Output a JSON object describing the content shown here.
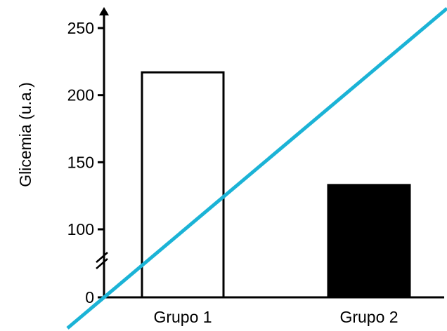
{
  "chart_data": {
    "type": "bar",
    "title": "",
    "xlabel": "",
    "ylabel": "Glicemia (u.a.)",
    "categories": [
      "Grupo 1",
      "Grupo 2"
    ],
    "values": [
      217,
      133
    ],
    "bar_fills": [
      "#ffffff",
      "#000000"
    ],
    "bar_stroke": "#000000",
    "ylim": [
      0,
      260
    ],
    "axis_break": "between 0 and 100",
    "yticks": [
      0,
      100,
      150,
      200,
      250
    ],
    "ytick_labels": [
      "0",
      "100",
      "150",
      "200",
      "250"
    ],
    "grid": false,
    "legend": "none",
    "overlay_line": {
      "color": "#1bb3d6"
    }
  }
}
